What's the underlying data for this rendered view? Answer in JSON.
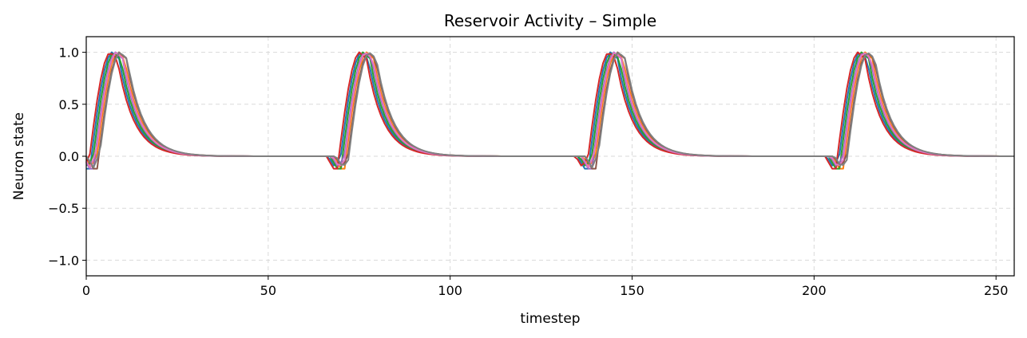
{
  "chart_data": {
    "type": "line",
    "title": "Reservoir Activity – Simple",
    "xlabel": "timestep",
    "ylabel": "Neuron state",
    "xlim": [
      0,
      255
    ],
    "ylim": [
      -1.15,
      1.15
    ],
    "xticks": [
      0,
      50,
      100,
      150,
      200,
      250
    ],
    "yticks": [
      1.0,
      0.5,
      0.0,
      -0.5,
      -1.0
    ],
    "xtick_labels": [
      "0",
      "50",
      "100",
      "150",
      "200",
      "250"
    ],
    "ytick_labels": [
      "1.0",
      "0.5",
      "0.0",
      "−0.5",
      "−1.0"
    ],
    "grid": true,
    "legend": "none",
    "pulse": {
      "period": 68.5,
      "peak_value": 1.0,
      "dip_value": -0.12,
      "rise_duration": 6,
      "decay_rate": 0.22
    },
    "series": [
      {
        "color": "#1f77b4",
        "onset_offset": 0.0
      },
      {
        "color": "#ff7f0e",
        "onset_offset": 1.5
      },
      {
        "color": "#2ca02c",
        "onset_offset": 0.5
      },
      {
        "color": "#d62728",
        "onset_offset": -0.5
      },
      {
        "color": "#9467bd",
        "onset_offset": 1.0
      },
      {
        "color": "#8c564b",
        "onset_offset": 2.0
      },
      {
        "color": "#e377c2",
        "onset_offset": 1.2
      },
      {
        "color": "#7f7f7f",
        "onset_offset": 2.2
      }
    ]
  }
}
